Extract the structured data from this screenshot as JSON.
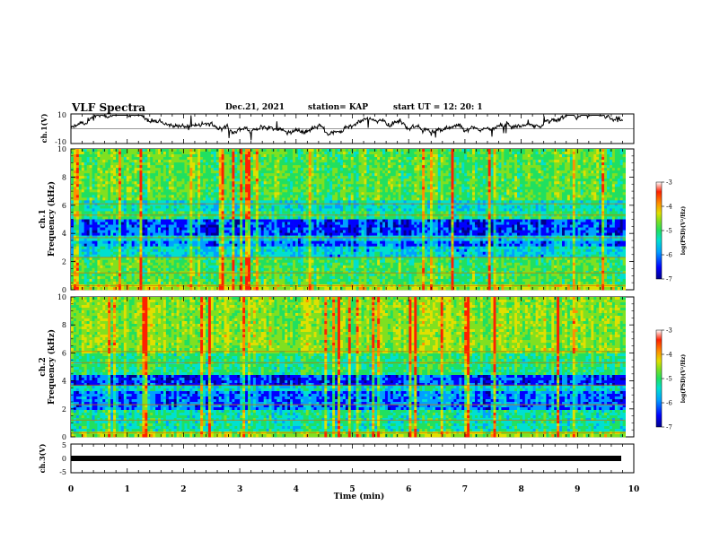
{
  "header": {
    "title": "VLF Spectra",
    "date": "Dec.21, 2021",
    "station": "station= KAP",
    "start": "start  UT  =   12: 20: 1"
  },
  "chart_data": [
    {
      "type": "line",
      "name": "ch1-waveform",
      "ylabel": "ch.1(V)",
      "ylim": [
        -10,
        10
      ],
      "yticks": [
        "10",
        "-10"
      ],
      "xlim": [
        0,
        10
      ]
    },
    {
      "type": "heatmap",
      "name": "ch1-spectrogram",
      "ylabel": "ch.1 Frequency (kHz)",
      "ylabel_top": "ch.1",
      "ylabel_bottom": "Frequency (kHz)",
      "ylim": [
        0,
        10
      ],
      "yticks": [
        "0",
        "2",
        "4",
        "6",
        "8",
        "10"
      ],
      "xlim": [
        0,
        9.85
      ],
      "colorbar": {
        "label": "log(PSD)(V²/Hz)",
        "range": [
          -7,
          -3
        ],
        "ticks": [
          "-3",
          "-4",
          "-5",
          "-6",
          "-7"
        ]
      }
    },
    {
      "type": "heatmap",
      "name": "ch2-spectrogram",
      "ylabel": "ch.2 Frequency (kHz)",
      "ylabel_top": "ch.2",
      "ylabel_bottom": "Frequency (kHz)",
      "ylim": [
        0,
        10
      ],
      "yticks": [
        "0",
        "2",
        "4",
        "6",
        "8",
        "10"
      ],
      "xlim": [
        0,
        9.85
      ],
      "colorbar": {
        "label": "log(PSD)(V²/Hz)",
        "range": [
          -7,
          -3
        ],
        "ticks": [
          "-3",
          "-4",
          "-5",
          "-6",
          "-7"
        ]
      }
    },
    {
      "type": "line",
      "name": "ch3-waveform",
      "ylabel": "ch.3(V)",
      "ylim": [
        -5,
        5
      ],
      "yticks": [
        "5",
        "0",
        "-5"
      ],
      "xlim": [
        0,
        10
      ]
    }
  ],
  "xaxis": {
    "label": "Time (min)",
    "ticks": [
      "0",
      "1",
      "2",
      "3",
      "4",
      "5",
      "6",
      "7",
      "8",
      "9",
      "10"
    ],
    "range": [
      0,
      10
    ]
  },
  "colors": {
    "colormap": [
      "#00008b",
      "#0000ff",
      "#00a0ff",
      "#00e0d0",
      "#20e060",
      "#80e020",
      "#e0e000",
      "#ff9000",
      "#ff2000",
      "#ffffff"
    ]
  }
}
